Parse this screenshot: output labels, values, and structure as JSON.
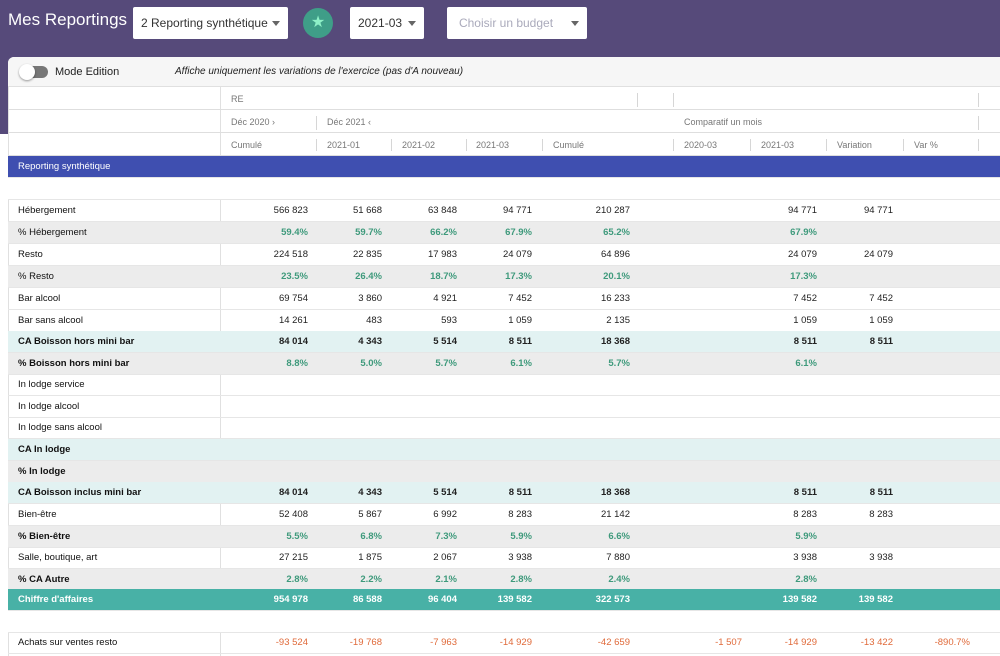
{
  "header": {
    "title": "Mes Reportings",
    "report_select": "2 Reporting synthétique",
    "period_select": "2021-03",
    "budget_placeholder": "Choisir un budget",
    "fav_icon": "star-icon"
  },
  "toolbar": {
    "mode_label": "Mode Edition",
    "note": "Affiche uniquement les variations de l'exercice (pas d'A nouveau)"
  },
  "table_header": {
    "group_re": "RE",
    "dec2020": "Déc 2020",
    "dec2021": "Déc 2021",
    "comparatif": "Comparatif un mois",
    "cols": [
      "Cumulé",
      "2021-01",
      "2021-02",
      "2021-03",
      "Cumulé",
      "2020-03",
      "2021-03",
      "Variation",
      "Var %"
    ]
  },
  "section_title": "Reporting synthétique",
  "rows": [
    {
      "label": "Hébergement",
      "values": [
        "566 823",
        "51 668",
        "63 848",
        "94 771",
        "210 287",
        "",
        "94 771",
        "94 771",
        ""
      ]
    },
    {
      "label": "% Hébergement",
      "values": [
        "59.4%",
        "59.7%",
        "66.2%",
        "67.9%",
        "65.2%",
        "",
        "67.9%",
        "",
        ""
      ]
    },
    {
      "label": "Resto",
      "values": [
        "224 518",
        "22 835",
        "17 983",
        "24 079",
        "64 896",
        "",
        "24 079",
        "24 079",
        ""
      ]
    },
    {
      "label": "% Resto",
      "values": [
        "23.5%",
        "26.4%",
        "18.7%",
        "17.3%",
        "20.1%",
        "",
        "17.3%",
        "",
        ""
      ]
    },
    {
      "label": "Bar alcool",
      "values": [
        "69 754",
        "3 860",
        "4 921",
        "7 452",
        "16 233",
        "",
        "7 452",
        "7 452",
        ""
      ]
    },
    {
      "label": "Bar sans alcool",
      "values": [
        "14 261",
        "483",
        "593",
        "1 059",
        "2 135",
        "",
        "1 059",
        "1 059",
        ""
      ]
    },
    {
      "label": "CA Boisson hors mini bar",
      "values": [
        "84 014",
        "4 343",
        "5 514",
        "8 511",
        "18 368",
        "",
        "8 511",
        "8 511",
        ""
      ]
    },
    {
      "label": "% Boisson hors mini bar",
      "values": [
        "8.8%",
        "5.0%",
        "5.7%",
        "6.1%",
        "5.7%",
        "",
        "6.1%",
        "",
        ""
      ]
    },
    {
      "label": "In lodge service",
      "values": [
        "",
        "",
        "",
        "",
        "",
        "",
        "",
        "",
        ""
      ]
    },
    {
      "label": "In lodge alcool",
      "values": [
        "",
        "",
        "",
        "",
        "",
        "",
        "",
        "",
        ""
      ]
    },
    {
      "label": "In lodge sans alcool",
      "values": [
        "",
        "",
        "",
        "",
        "",
        "",
        "",
        "",
        ""
      ]
    },
    {
      "label": "CA In lodge",
      "values": [
        "",
        "",
        "",
        "",
        "",
        "",
        "",
        "",
        ""
      ]
    },
    {
      "label": "% In lodge",
      "values": [
        "",
        "",
        "",
        "",
        "",
        "",
        "",
        "",
        ""
      ]
    },
    {
      "label": "CA Boisson inclus mini bar",
      "values": [
        "84 014",
        "4 343",
        "5 514",
        "8 511",
        "18 368",
        "",
        "8 511",
        "8 511",
        ""
      ]
    },
    {
      "label": "Bien-être",
      "values": [
        "52 408",
        "5 867",
        "6 992",
        "8 283",
        "21 142",
        "",
        "8 283",
        "8 283",
        ""
      ]
    },
    {
      "label": "% Bien-être",
      "values": [
        "5.5%",
        "6.8%",
        "7.3%",
        "5.9%",
        "6.6%",
        "",
        "5.9%",
        "",
        ""
      ]
    },
    {
      "label": "Salle, boutique, art",
      "values": [
        "27 215",
        "1 875",
        "2 067",
        "3 938",
        "7 880",
        "",
        "3 938",
        "3 938",
        ""
      ]
    },
    {
      "label": "% CA Autre",
      "values": [
        "2.8%",
        "2.2%",
        "2.1%",
        "2.8%",
        "2.4%",
        "",
        "2.8%",
        "",
        ""
      ]
    },
    {
      "label": "Chiffre d'affaires",
      "values": [
        "954 978",
        "86 588",
        "96 404",
        "139 582",
        "322 573",
        "",
        "139 582",
        "139 582",
        ""
      ]
    },
    {
      "label": "",
      "values": [
        "",
        "",
        "",
        "",
        "",
        "",
        "",
        "",
        ""
      ]
    },
    {
      "label": "Achats sur ventes resto",
      "values": [
        "-93 524",
        "-19 768",
        "-7 963",
        "-14 929",
        "-42 659",
        "-1 507",
        "-14 929",
        "-13 422",
        "-890.7%"
      ]
    }
  ]
}
